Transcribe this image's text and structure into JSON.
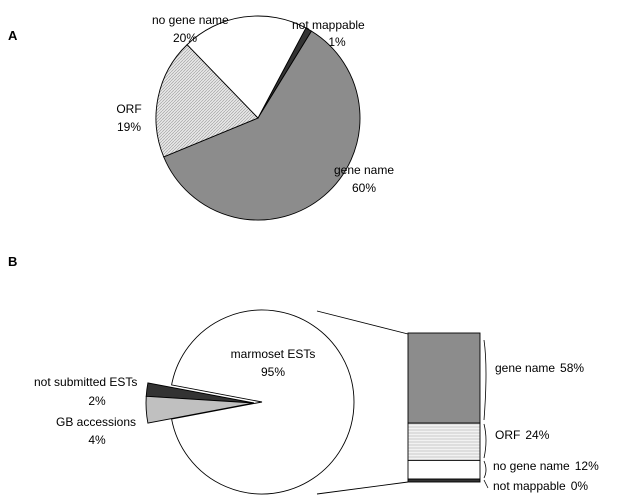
{
  "colors": {
    "gene_name": "#8c8c8c",
    "orf": "#d9d9d9",
    "no_gene_name": "#ffffff",
    "not_mappable": "#333333",
    "marmoset_ests": "#ffffff",
    "gb_accessions": "#c0c0c0",
    "not_submitted": "#333333"
  },
  "chart_data": [
    {
      "type": "pie",
      "panel": "A",
      "slices": [
        {
          "label": "gene name",
          "value": 60,
          "display": "60%"
        },
        {
          "label": "ORF",
          "value": 19,
          "display": "19%"
        },
        {
          "label": "no gene name",
          "value": 20,
          "display": "20%"
        },
        {
          "label": "not mappable",
          "value": 1,
          "display": "1%"
        }
      ]
    },
    {
      "type": "pie",
      "panel": "B",
      "slices": [
        {
          "label": "marmoset ESTs",
          "value": 95,
          "display": "95%"
        },
        {
          "label": "not submitted ESTs",
          "value": 2,
          "display": "2%"
        },
        {
          "label": "GB accessions",
          "value": 4,
          "display": "4%"
        }
      ],
      "breakdown_of": "marmoset ESTs",
      "breakdown": [
        {
          "label": "gene name",
          "value": 58,
          "display": "58%"
        },
        {
          "label": "ORF",
          "value": 24,
          "display": "24%"
        },
        {
          "label": "no gene name",
          "value": 12,
          "display": "12%"
        },
        {
          "label": "not mappable",
          "value": 0,
          "display": "0%"
        }
      ]
    }
  ]
}
